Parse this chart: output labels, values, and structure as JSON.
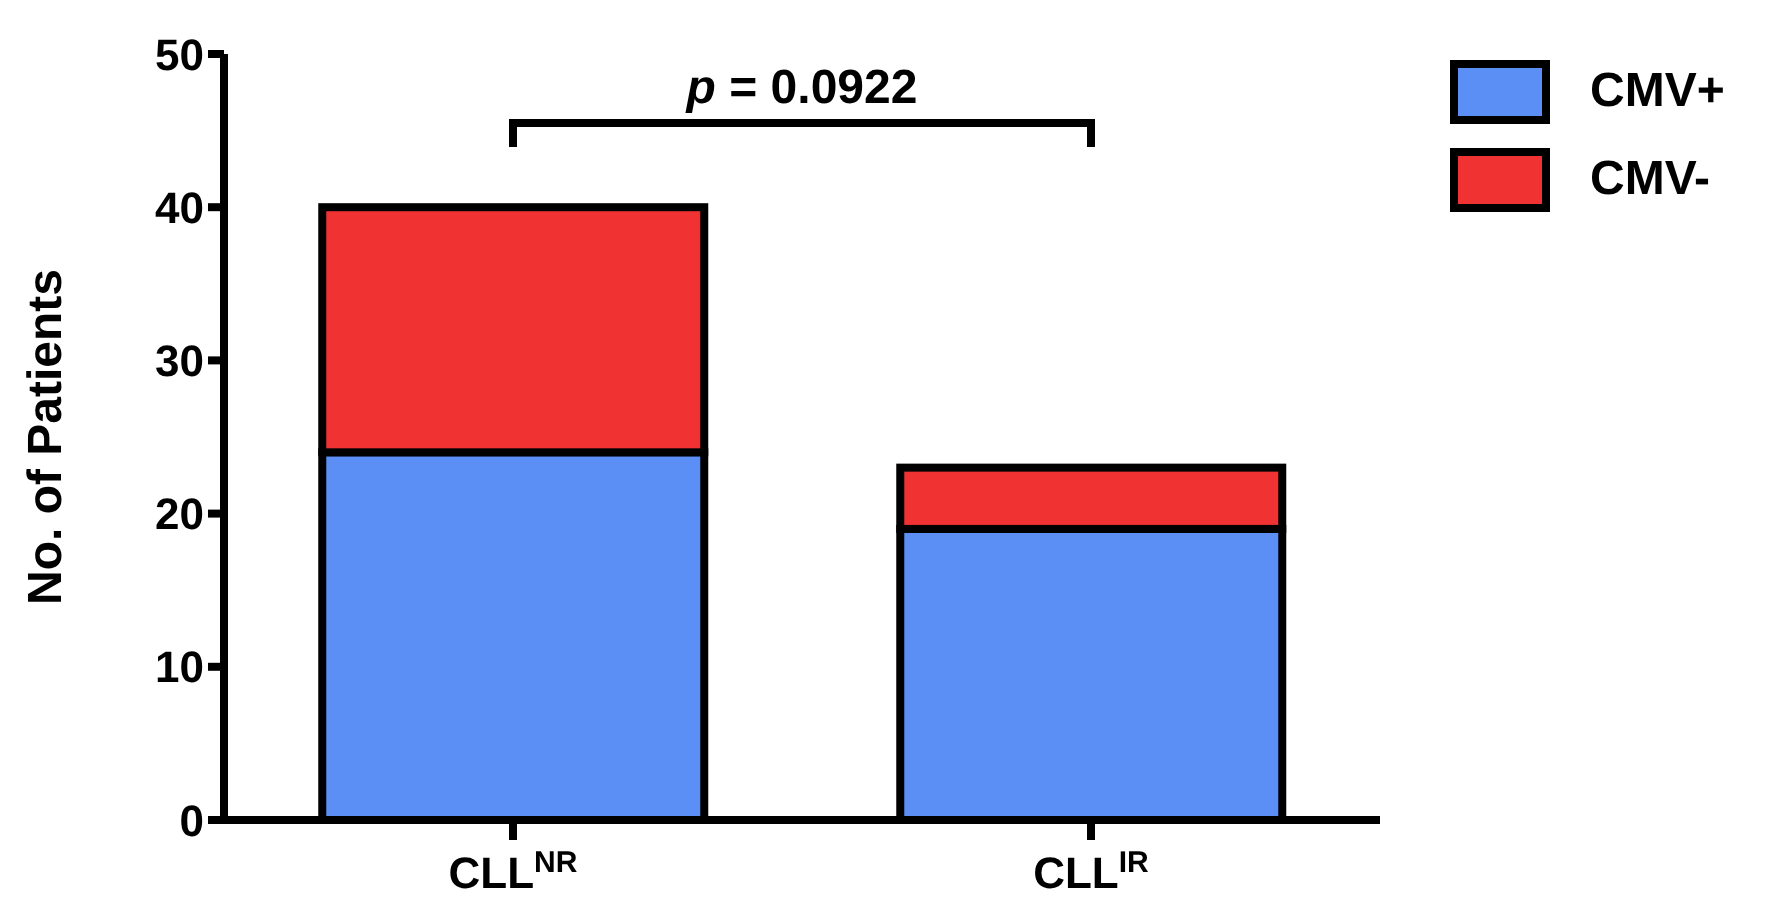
{
  "chart_data": {
    "type": "bar",
    "stacked": true,
    "ylabel": "No. of Patients",
    "categories": [
      "CLL$^{NR}$",
      "CLL$^{IR}$"
    ],
    "series": [
      {
        "name": "CMV+",
        "color": "#5b8ff5",
        "values": [
          24,
          19
        ]
      },
      {
        "name": "CMV-",
        "color": "#f03232",
        "values": [
          16,
          4
        ]
      }
    ],
    "ylim": [
      0,
      50
    ],
    "yticks": [
      0,
      10,
      20,
      30,
      40,
      50
    ],
    "grid": false,
    "legend": "top right",
    "annotations": [
      "p = 0.0922"
    ]
  }
}
